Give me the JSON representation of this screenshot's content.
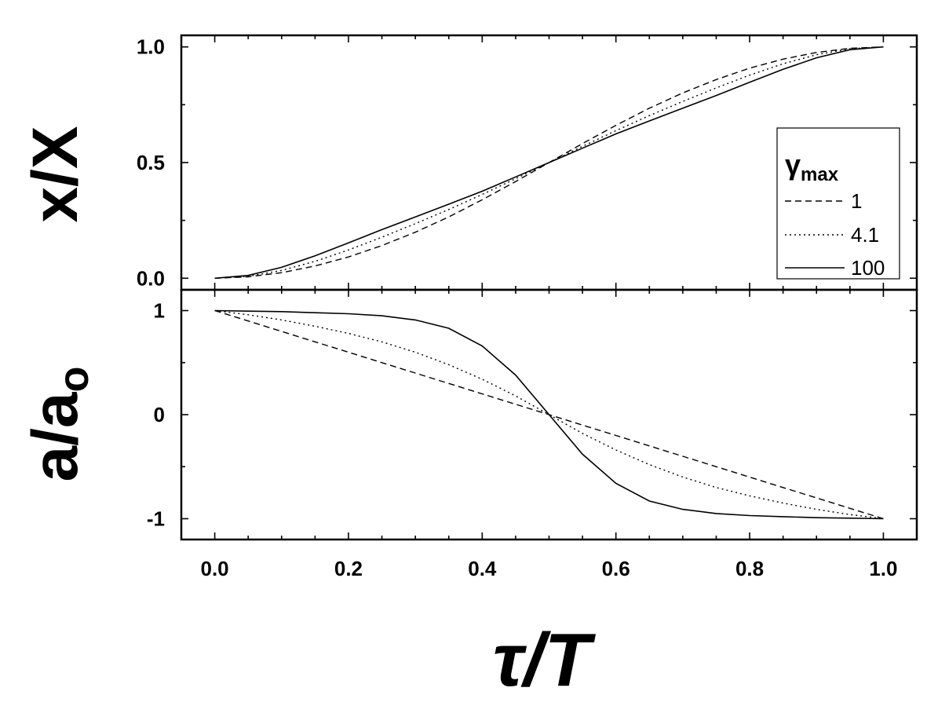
{
  "chart_data": [
    {
      "type": "line",
      "panel": "top",
      "ylabel": "x/X",
      "xlabel": "",
      "xlim": [
        -0.05,
        1.05
      ],
      "ylim": [
        -0.05,
        1.05
      ],
      "yticks": [
        "0.0",
        "0.5",
        "1.0"
      ],
      "yticks_values": [
        0.0,
        0.5,
        1.0
      ],
      "grid": false,
      "legend": {
        "title": "γ",
        "title_subscript": "max",
        "position": "right",
        "entries": [
          "1",
          "4.1",
          "100"
        ]
      },
      "series": [
        {
          "name": "1",
          "line_style": "dashed",
          "x": [
            0,
            0.05,
            0.1,
            0.15,
            0.2,
            0.25,
            0.3,
            0.35,
            0.4,
            0.45,
            0.5,
            0.55,
            0.6,
            0.65,
            0.7,
            0.75,
            0.8,
            0.85,
            0.9,
            0.95,
            1.0
          ],
          "y": [
            0,
            0.006,
            0.024,
            0.053,
            0.092,
            0.141,
            0.199,
            0.265,
            0.339,
            0.418,
            0.5,
            0.582,
            0.661,
            0.735,
            0.801,
            0.859,
            0.908,
            0.947,
            0.976,
            0.994,
            1.0
          ]
        },
        {
          "name": "4.1",
          "line_style": "dotted",
          "x": [
            0,
            0.05,
            0.1,
            0.15,
            0.2,
            0.25,
            0.3,
            0.35,
            0.4,
            0.45,
            0.5,
            0.55,
            0.6,
            0.65,
            0.7,
            0.75,
            0.8,
            0.85,
            0.9,
            0.95,
            1.0
          ],
          "y": [
            0,
            0.008,
            0.034,
            0.073,
            0.122,
            0.177,
            0.236,
            0.297,
            0.362,
            0.43,
            0.5,
            0.57,
            0.638,
            0.703,
            0.764,
            0.823,
            0.878,
            0.927,
            0.966,
            0.992,
            1.0
          ]
        },
        {
          "name": "100",
          "line_style": "solid",
          "x": [
            0,
            0.05,
            0.1,
            0.15,
            0.2,
            0.25,
            0.3,
            0.35,
            0.4,
            0.45,
            0.5,
            0.55,
            0.6,
            0.65,
            0.7,
            0.75,
            0.8,
            0.85,
            0.9,
            0.95,
            1.0
          ],
          "y": [
            0,
            0.012,
            0.047,
            0.097,
            0.153,
            0.21,
            0.265,
            0.32,
            0.376,
            0.438,
            0.5,
            0.562,
            0.624,
            0.68,
            0.735,
            0.79,
            0.847,
            0.903,
            0.953,
            0.988,
            1.0
          ]
        }
      ]
    },
    {
      "type": "line",
      "panel": "bottom",
      "ylabel": "a/a",
      "ylabel_subscript": "o",
      "xlabel": "τ/T",
      "xlim": [
        -0.05,
        1.05
      ],
      "ylim": [
        -1.2,
        1.2
      ],
      "xticks": [
        "0.0",
        "0.2",
        "0.4",
        "0.6",
        "0.8",
        "1.0"
      ],
      "xticks_values": [
        0.0,
        0.2,
        0.4,
        0.6,
        0.8,
        1.0
      ],
      "yticks": [
        "-1",
        "0",
        "1"
      ],
      "yticks_values": [
        -1,
        0,
        1
      ],
      "grid": false,
      "series": [
        {
          "name": "1",
          "line_style": "dashed",
          "x": [
            0,
            0.05,
            0.1,
            0.15,
            0.2,
            0.25,
            0.3,
            0.35,
            0.4,
            0.45,
            0.5,
            0.55,
            0.6,
            0.65,
            0.7,
            0.75,
            0.8,
            0.85,
            0.9,
            0.95,
            1.0
          ],
          "y": [
            1.0,
            0.9,
            0.8,
            0.7,
            0.6,
            0.5,
            0.4,
            0.3,
            0.2,
            0.1,
            0.0,
            -0.1,
            -0.2,
            -0.3,
            -0.4,
            -0.5,
            -0.6,
            -0.7,
            -0.8,
            -0.9,
            -1.0
          ]
        },
        {
          "name": "4.1",
          "line_style": "dotted",
          "x": [
            0,
            0.05,
            0.1,
            0.15,
            0.2,
            0.25,
            0.3,
            0.35,
            0.4,
            0.45,
            0.5,
            0.55,
            0.6,
            0.65,
            0.7,
            0.75,
            0.8,
            0.85,
            0.9,
            0.95,
            1.0
          ],
          "y": [
            1.0,
            0.96,
            0.91,
            0.85,
            0.78,
            0.7,
            0.6,
            0.48,
            0.34,
            0.18,
            0.0,
            -0.18,
            -0.34,
            -0.48,
            -0.6,
            -0.7,
            -0.78,
            -0.85,
            -0.91,
            -0.96,
            -1.0
          ]
        },
        {
          "name": "100",
          "line_style": "solid",
          "x": [
            0,
            0.05,
            0.1,
            0.15,
            0.2,
            0.25,
            0.3,
            0.35,
            0.4,
            0.45,
            0.5,
            0.55,
            0.6,
            0.65,
            0.7,
            0.75,
            0.8,
            0.85,
            0.9,
            0.95,
            1.0
          ],
          "y": [
            1.0,
            0.995,
            0.99,
            0.98,
            0.97,
            0.95,
            0.91,
            0.83,
            0.66,
            0.38,
            0.0,
            -0.38,
            -0.66,
            -0.83,
            -0.91,
            -0.95,
            -0.97,
            -0.98,
            -0.99,
            -0.995,
            -1.0
          ]
        }
      ]
    }
  ]
}
